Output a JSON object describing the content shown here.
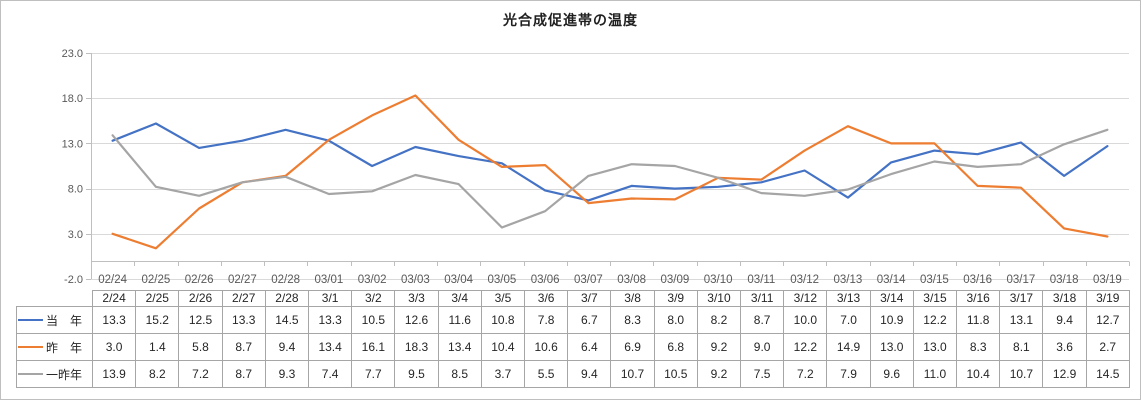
{
  "chart_data": {
    "type": "line",
    "title": "光合成促進帯の温度",
    "x": [
      "02/24",
      "02/25",
      "02/26",
      "02/27",
      "02/28",
      "03/01",
      "03/02",
      "03/03",
      "03/04",
      "03/05",
      "03/06",
      "03/07",
      "03/08",
      "03/09",
      "03/10",
      "03/11",
      "03/12",
      "03/13",
      "03/14",
      "03/15",
      "03/16",
      "03/17",
      "03/18",
      "03/19"
    ],
    "y_ticks": [
      "23.0",
      "18.0",
      "13.0",
      "8.0",
      "3.0",
      "-2.0"
    ],
    "ylim": [
      -2.0,
      23.0
    ],
    "grid": true,
    "legend_position": "data-table-left",
    "series": [
      {
        "name": "当　年",
        "color": "#4472C4",
        "values": [
          13.3,
          15.2,
          12.5,
          13.3,
          14.5,
          13.3,
          10.5,
          12.6,
          11.6,
          10.8,
          7.8,
          6.7,
          8.3,
          8.0,
          8.2,
          8.7,
          10.0,
          7.0,
          10.9,
          12.2,
          11.8,
          13.1,
          9.4,
          12.7
        ]
      },
      {
        "name": "昨　年",
        "color": "#ED7D31",
        "values": [
          3.0,
          1.4,
          5.8,
          8.7,
          9.4,
          13.4,
          16.1,
          18.3,
          13.4,
          10.4,
          10.6,
          6.4,
          6.9,
          6.8,
          9.2,
          9.0,
          12.2,
          14.9,
          13.0,
          13.0,
          8.3,
          8.1,
          3.6,
          2.7
        ]
      },
      {
        "name": "一昨年",
        "color": "#A5A5A5",
        "values": [
          13.9,
          8.2,
          7.2,
          8.7,
          9.3,
          7.4,
          7.7,
          9.5,
          8.5,
          3.7,
          5.5,
          9.4,
          10.7,
          10.5,
          9.2,
          7.5,
          7.2,
          7.9,
          9.6,
          11.0,
          10.4,
          10.7,
          12.9,
          14.5
        ]
      }
    ],
    "table_columns": [
      "2/24",
      "2/25",
      "2/26",
      "2/27",
      "2/28",
      "3/1",
      "3/2",
      "3/3",
      "3/4",
      "3/5",
      "3/6",
      "3/7",
      "3/8",
      "3/9",
      "3/10",
      "3/11",
      "3/12",
      "3/13",
      "3/14",
      "3/15",
      "3/16",
      "3/17",
      "3/18",
      "3/19"
    ]
  }
}
